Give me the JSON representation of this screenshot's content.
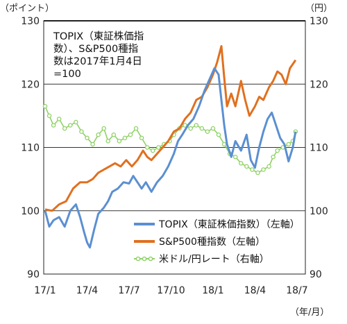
{
  "chart_data": {
    "type": "line",
    "y_left_unit": "（ポイント）",
    "y_right_unit": "（円）",
    "x_unit": "（年/月）",
    "annotation": [
      "TOPIX（東証株価指",
      "数）、S&P500種指",
      "数は2017年1月4日",
      "=100"
    ],
    "ylim": [
      90,
      130
    ],
    "y_ticks": [
      90,
      100,
      110,
      120,
      130
    ],
    "x_ticks": [
      "17/1",
      "17/4",
      "17/7",
      "17/10",
      "18/1",
      "18/4",
      "18/7"
    ],
    "grid": "horizontal",
    "legend_position": "bottom-right",
    "colors": {
      "topix": "#5b8fd1",
      "sp500": "#e0701f",
      "usdjpy": "#8fd166"
    },
    "series": [
      {
        "id": "topix",
        "name": "TOPIX（東証株価指数）（左軸）",
        "points": [
          [
            0,
            100.0
          ],
          [
            0.3,
            97.5
          ],
          [
            0.6,
            98.5
          ],
          [
            1.0,
            99.0
          ],
          [
            1.4,
            97.5
          ],
          [
            1.8,
            100.0
          ],
          [
            2.2,
            101.0
          ],
          [
            2.5,
            99.0
          ],
          [
            2.8,
            96.5
          ],
          [
            3.0,
            95.0
          ],
          [
            3.2,
            94.2
          ],
          [
            3.5,
            97.0
          ],
          [
            3.8,
            99.5
          ],
          [
            4.2,
            100.5
          ],
          [
            4.5,
            101.5
          ],
          [
            4.8,
            103.0
          ],
          [
            5.2,
            103.5
          ],
          [
            5.6,
            104.5
          ],
          [
            6.0,
            104.3
          ],
          [
            6.3,
            105.5
          ],
          [
            6.6,
            104.5
          ],
          [
            6.9,
            103.5
          ],
          [
            7.2,
            104.5
          ],
          [
            7.6,
            103.0
          ],
          [
            8.0,
            104.5
          ],
          [
            8.4,
            105.5
          ],
          [
            8.8,
            107.0
          ],
          [
            9.2,
            109.0
          ],
          [
            9.5,
            111.0
          ],
          [
            9.8,
            112.0
          ],
          [
            10.2,
            113.5
          ],
          [
            10.6,
            114.5
          ],
          [
            11.0,
            116.5
          ],
          [
            11.4,
            119.0
          ],
          [
            11.8,
            121.0
          ],
          [
            12.1,
            122.5
          ],
          [
            12.4,
            121.5
          ],
          [
            12.6,
            117.5
          ],
          [
            12.8,
            113.5
          ],
          [
            13.0,
            110.5
          ],
          [
            13.3,
            108.5
          ],
          [
            13.6,
            111.0
          ],
          [
            14.0,
            109.5
          ],
          [
            14.4,
            112.0
          ],
          [
            14.7,
            108.0
          ],
          [
            15.0,
            106.8
          ],
          [
            15.3,
            110.0
          ],
          [
            15.6,
            112.5
          ],
          [
            15.9,
            114.5
          ],
          [
            16.2,
            115.5
          ],
          [
            16.5,
            113.5
          ],
          [
            16.8,
            111.5
          ],
          [
            17.1,
            110.5
          ],
          [
            17.4,
            107.8
          ],
          [
            17.7,
            110.0
          ],
          [
            17.9,
            112.5
          ]
        ]
      },
      {
        "id": "sp500",
        "name": "S&P500種指数（左軸）",
        "points": [
          [
            0,
            100.2
          ],
          [
            0.5,
            100.0
          ],
          [
            1.0,
            101.0
          ],
          [
            1.5,
            101.5
          ],
          [
            2.0,
            103.5
          ],
          [
            2.5,
            104.5
          ],
          [
            3.0,
            104.5
          ],
          [
            3.4,
            105.0
          ],
          [
            3.8,
            106.0
          ],
          [
            4.2,
            106.5
          ],
          [
            4.6,
            107.0
          ],
          [
            5.0,
            107.5
          ],
          [
            5.4,
            107.0
          ],
          [
            5.8,
            108.0
          ],
          [
            6.2,
            107.0
          ],
          [
            6.6,
            108.0
          ],
          [
            7.0,
            109.5
          ],
          [
            7.3,
            108.5
          ],
          [
            7.6,
            108.0
          ],
          [
            8.0,
            109.0
          ],
          [
            8.4,
            110.0
          ],
          [
            8.8,
            111.0
          ],
          [
            9.2,
            112.5
          ],
          [
            9.6,
            113.0
          ],
          [
            10.0,
            114.5
          ],
          [
            10.4,
            115.5
          ],
          [
            10.8,
            117.5
          ],
          [
            11.2,
            118.0
          ],
          [
            11.6,
            119.5
          ],
          [
            12.0,
            121.5
          ],
          [
            12.3,
            123.5
          ],
          [
            12.6,
            126.0
          ],
          [
            12.8,
            121.0
          ],
          [
            13.0,
            116.5
          ],
          [
            13.3,
            118.5
          ],
          [
            13.6,
            116.5
          ],
          [
            14.0,
            120.5
          ],
          [
            14.3,
            117.5
          ],
          [
            14.6,
            115.0
          ],
          [
            15.0,
            116.5
          ],
          [
            15.3,
            118.0
          ],
          [
            15.6,
            117.5
          ],
          [
            16.0,
            119.5
          ],
          [
            16.3,
            120.5
          ],
          [
            16.6,
            122.0
          ],
          [
            16.9,
            121.5
          ],
          [
            17.2,
            120.0
          ],
          [
            17.5,
            122.5
          ],
          [
            17.9,
            123.8
          ]
        ]
      },
      {
        "id": "usdjpy",
        "name": "米ドル/円レート（右軸）",
        "points": [
          [
            0,
            116.5
          ],
          [
            0.3,
            115.0
          ],
          [
            0.6,
            113.5
          ],
          [
            1.0,
            114.5
          ],
          [
            1.4,
            113.0
          ],
          [
            1.8,
            113.5
          ],
          [
            2.2,
            114.0
          ],
          [
            2.6,
            112.5
          ],
          [
            3.0,
            111.5
          ],
          [
            3.4,
            110.5
          ],
          [
            3.8,
            112.0
          ],
          [
            4.2,
            113.0
          ],
          [
            4.5,
            111.0
          ],
          [
            4.9,
            112.0
          ],
          [
            5.3,
            111.0
          ],
          [
            5.7,
            111.5
          ],
          [
            6.1,
            112.0
          ],
          [
            6.5,
            113.0
          ],
          [
            6.9,
            111.5
          ],
          [
            7.3,
            110.0
          ],
          [
            7.7,
            109.5
          ],
          [
            8.1,
            110.0
          ],
          [
            8.5,
            110.5
          ],
          [
            8.9,
            111.0
          ],
          [
            9.2,
            112.0
          ],
          [
            9.6,
            113.0
          ],
          [
            10.0,
            113.5
          ],
          [
            10.4,
            113.0
          ],
          [
            10.8,
            113.5
          ],
          [
            11.2,
            113.0
          ],
          [
            11.6,
            112.5
          ],
          [
            12.0,
            113.0
          ],
          [
            12.4,
            112.0
          ],
          [
            12.8,
            110.5
          ],
          [
            13.2,
            109.0
          ],
          [
            13.6,
            108.5
          ],
          [
            14.0,
            107.5
          ],
          [
            14.4,
            107.0
          ],
          [
            14.8,
            106.5
          ],
          [
            15.2,
            106.0
          ],
          [
            15.6,
            106.5
          ],
          [
            16.0,
            107.0
          ],
          [
            16.3,
            108.5
          ],
          [
            16.6,
            109.5
          ],
          [
            17.0,
            110.0
          ],
          [
            17.4,
            110.5
          ],
          [
            17.7,
            111.0
          ],
          [
            17.9,
            112.5
          ]
        ]
      }
    ]
  }
}
